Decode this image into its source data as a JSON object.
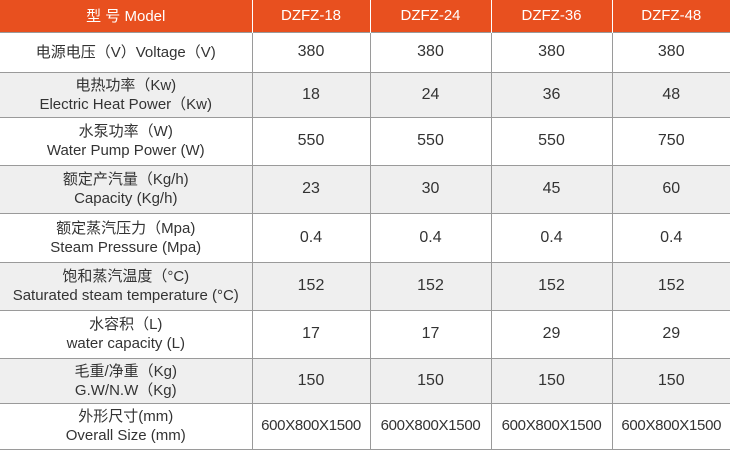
{
  "header": {
    "param": "型 号 Model",
    "models": [
      "DZFZ-18",
      "DZFZ-24",
      "DZFZ-36",
      "DZFZ-48"
    ]
  },
  "rows": [
    {
      "label_cn": "电源电压（V）Voltage（V)",
      "label_en": "",
      "values": [
        "380",
        "380",
        "380",
        "380"
      ]
    },
    {
      "label_cn": "电热功率（Kw)",
      "label_en": "Electric Heat Power（Kw)",
      "values": [
        "18",
        "24",
        "36",
        "48"
      ]
    },
    {
      "label_cn": "水泵功率（W)",
      "label_en": "Water Pump Power (W)",
      "values": [
        "550",
        "550",
        "550",
        "750"
      ]
    },
    {
      "label_cn": "额定产汽量（Kg/h)",
      "label_en": "Capacity (Kg/h)",
      "values": [
        "23",
        "30",
        "45",
        "60"
      ]
    },
    {
      "label_cn": "额定蒸汽压力（Mpa)",
      "label_en": "Steam Pressure (Mpa)",
      "values": [
        "0.4",
        "0.4",
        "0.4",
        "0.4"
      ]
    },
    {
      "label_cn": "饱和蒸汽温度（°C)",
      "label_en": "Saturated steam temperature (°C)",
      "values": [
        "152",
        "152",
        "152",
        "152"
      ]
    },
    {
      "label_cn": "水容积（L)",
      "label_en": "water capacity (L)",
      "values": [
        "17",
        "17",
        "29",
        "29"
      ]
    },
    {
      "label_cn": "毛重/净重（Kg)",
      "label_en": "G.W/N.W（Kg)",
      "values": [
        "150",
        "150",
        "150",
        "150"
      ]
    },
    {
      "label_cn": "外形尺寸(mm)",
      "label_en": "Overall Size (mm)",
      "values": [
        "600X800X1500",
        "600X800X1500",
        "600X800X1500",
        "600X800X1500"
      ]
    }
  ]
}
